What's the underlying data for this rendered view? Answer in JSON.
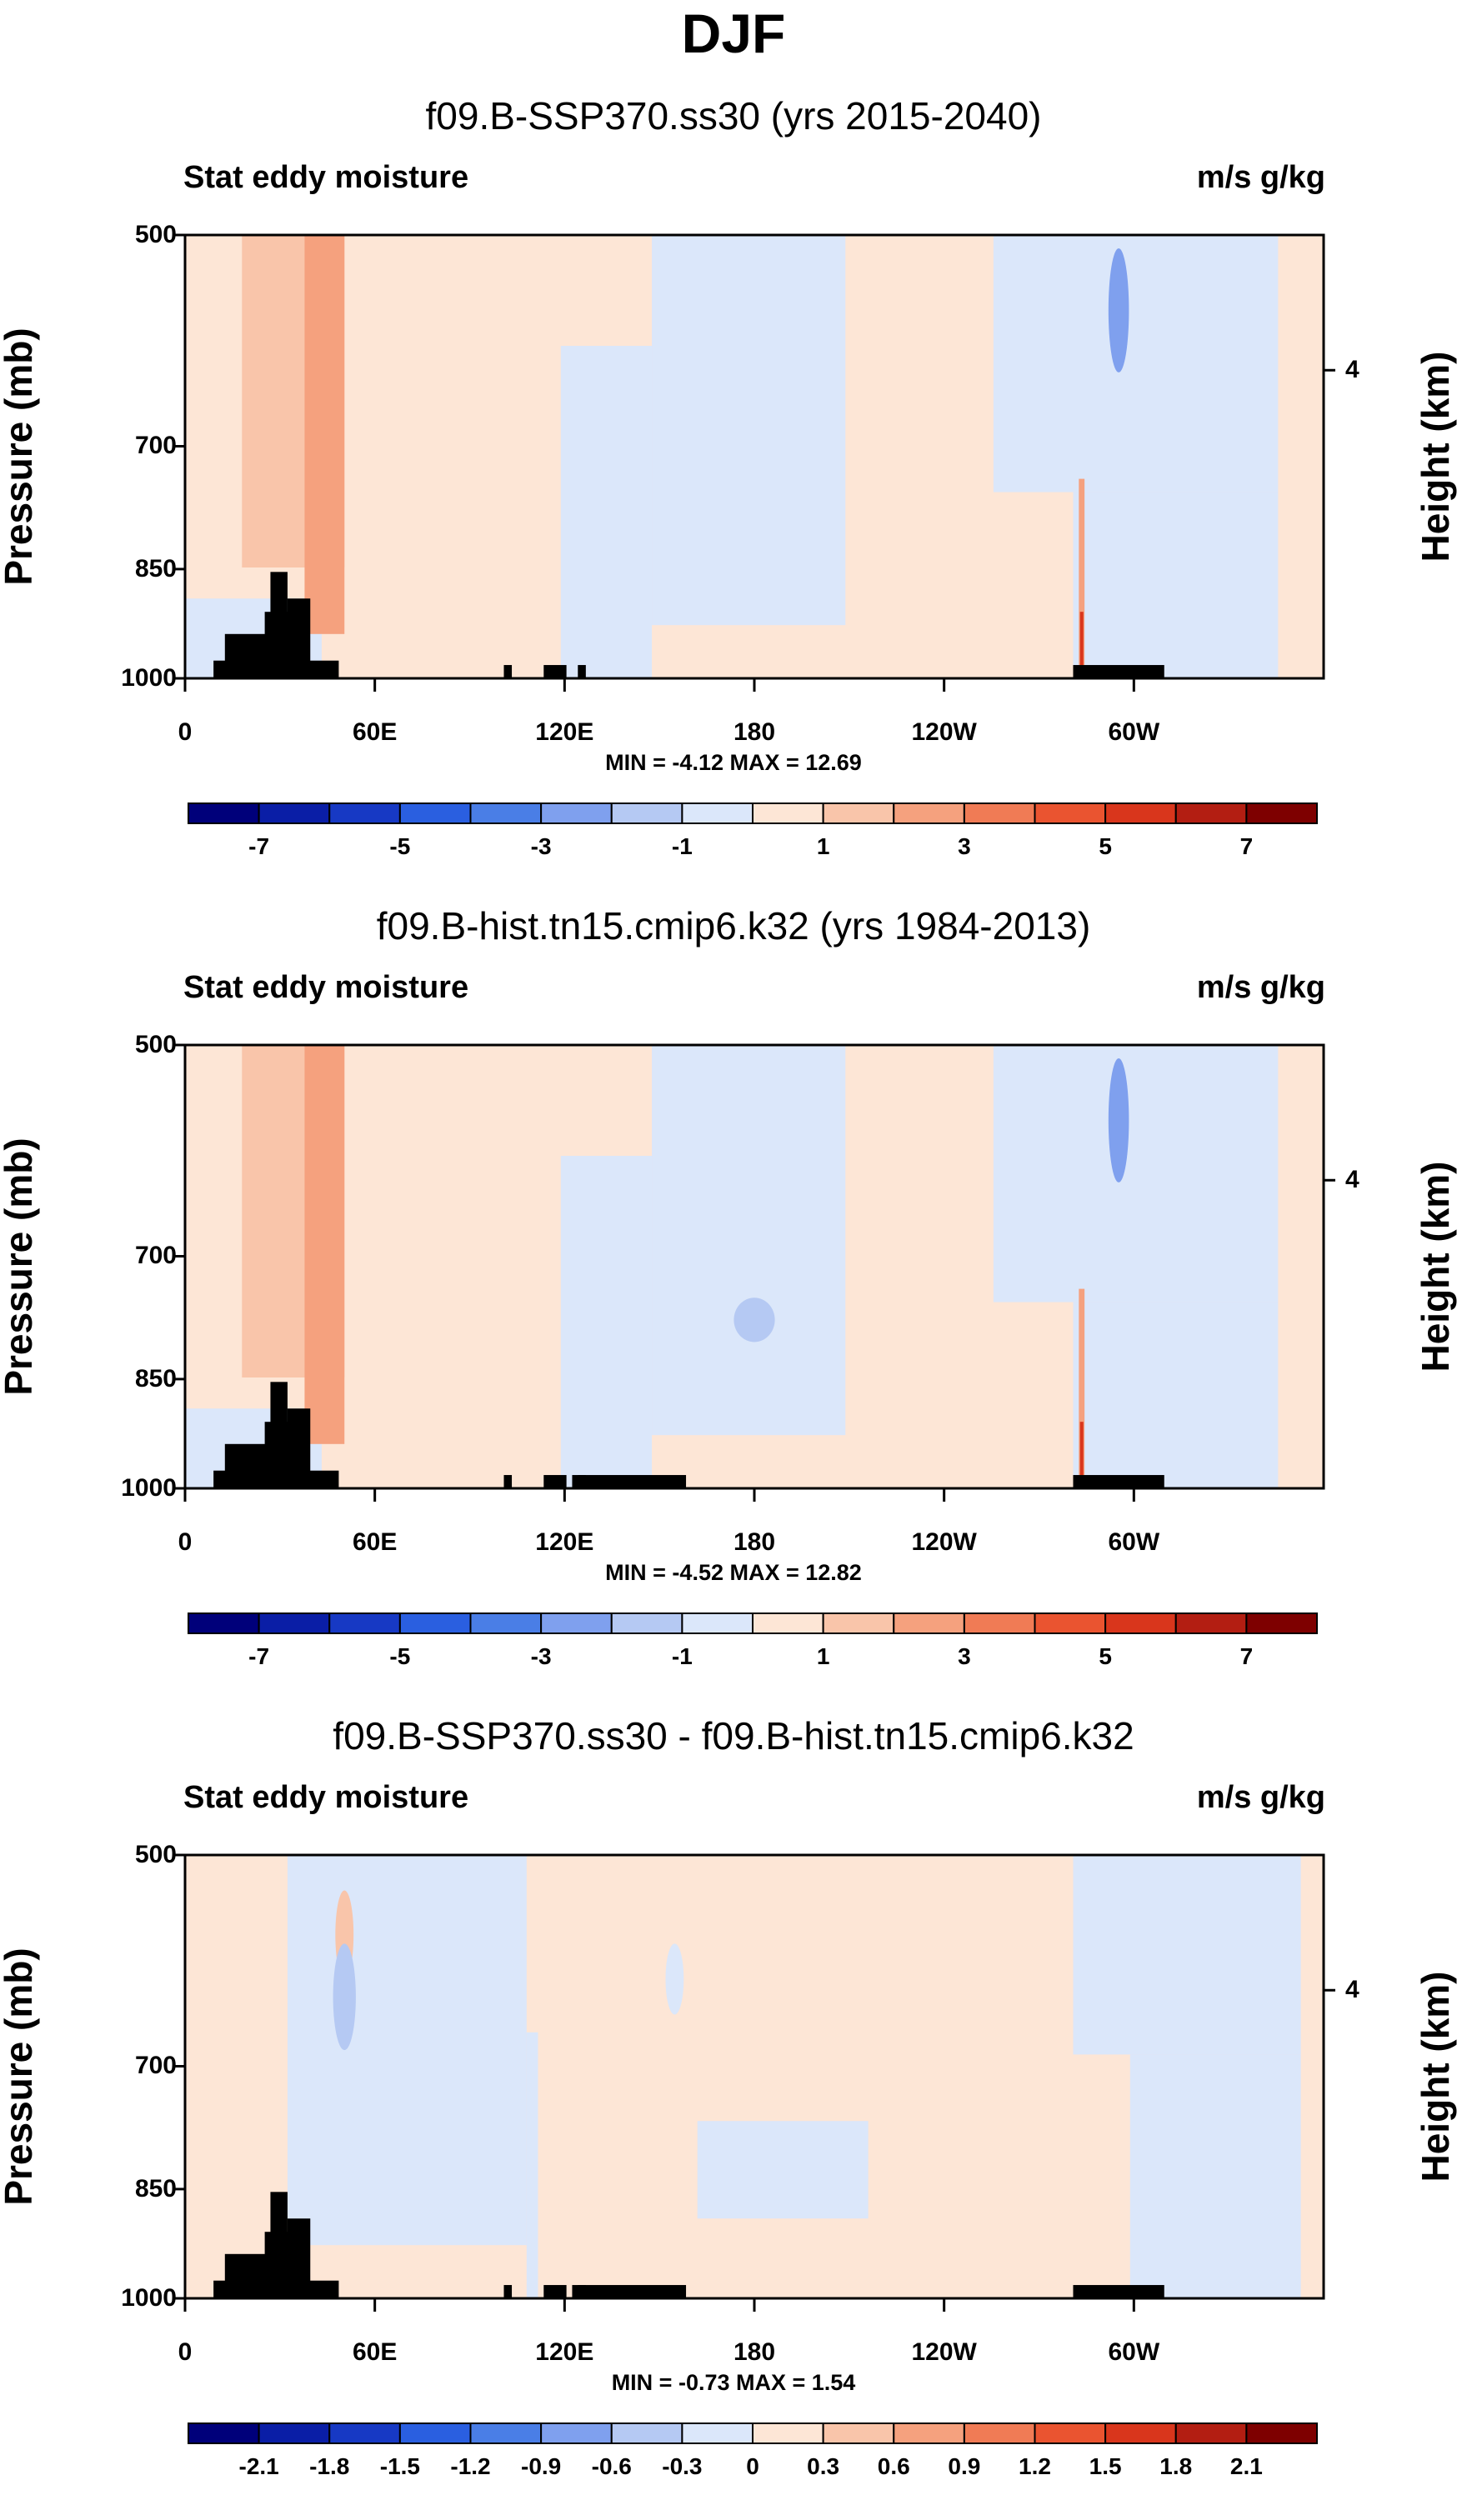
{
  "figure": {
    "title": "DJF"
  },
  "chart_data": [
    {
      "type": "heatmap",
      "title": "f09.B-SSP370.ss30 (yrs 2015-2040)",
      "variable_label": "Stat eddy moisture",
      "units": "m/s g/kg",
      "ylabel": "Pressure (mb)",
      "ylabel_right": "Height (km)",
      "y_ticks": [
        "500",
        "700",
        "850",
        "1000"
      ],
      "y_ticks_right": [
        "4"
      ],
      "x_ticks": [
        "0",
        "60E",
        "120E",
        "180",
        "120W",
        "60W"
      ],
      "stats": "MIN = -4.12  MAX = 12.69",
      "colorbar_labels": [
        "-7",
        "-5",
        "-3",
        "-1",
        "1",
        "3",
        "5",
        "7"
      ],
      "colorbar_bins": 16
    },
    {
      "type": "heatmap",
      "title": "f09.B-hist.tn15.cmip6.k32 (yrs 1984-2013)",
      "variable_label": "Stat eddy moisture",
      "units": "m/s g/kg",
      "ylabel": "Pressure (mb)",
      "ylabel_right": "Height (km)",
      "y_ticks": [
        "500",
        "700",
        "850",
        "1000"
      ],
      "y_ticks_right": [
        "4"
      ],
      "x_ticks": [
        "0",
        "60E",
        "120E",
        "180",
        "120W",
        "60W"
      ],
      "stats": "MIN = -4.52  MAX = 12.82",
      "colorbar_labels": [
        "-7",
        "-5",
        "-3",
        "-1",
        "1",
        "3",
        "5",
        "7"
      ],
      "colorbar_bins": 16
    },
    {
      "type": "heatmap",
      "title": "f09.B-SSP370.ss30 - f09.B-hist.tn15.cmip6.k32",
      "variable_label": "Stat eddy moisture",
      "units": "m/s g/kg",
      "ylabel": "Pressure (mb)",
      "ylabel_right": "Height (km)",
      "y_ticks": [
        "500",
        "700",
        "850",
        "1000"
      ],
      "y_ticks_right": [
        "4"
      ],
      "x_ticks": [
        "0",
        "60E",
        "120E",
        "180",
        "120W",
        "60W"
      ],
      "stats": "MIN = -0.73  MAX =  1.54",
      "colorbar_labels": [
        "-2.1",
        "-1.8",
        "-1.5",
        "-1.2",
        "-0.9",
        "-0.6",
        "-0.3",
        "0",
        "0.3",
        "0.6",
        "0.9",
        "1.2",
        "1.5",
        "1.8",
        "2.1"
      ],
      "colorbar_bins": 16
    }
  ],
  "colors": {
    "palette": [
      "#00007a",
      "#0a1ea6",
      "#1739c4",
      "#2a5fe0",
      "#4a7ee6",
      "#7fa0ee",
      "#b5c9f3",
      "#dbe7fa",
      "#fde6d6",
      "#f9c5aa",
      "#f5a17e",
      "#f07b55",
      "#ea5430",
      "#d9361c",
      "#b31e12",
      "#7e0000"
    ],
    "pos_light": "#fde6d6",
    "pos_mid": "#f9c5aa",
    "pos_strong": "#f5a17e",
    "neg_light": "#dbe7fa",
    "neg_mid": "#b5c9f3",
    "neg_strong": "#7fa0ee",
    "topography": "#000000"
  }
}
